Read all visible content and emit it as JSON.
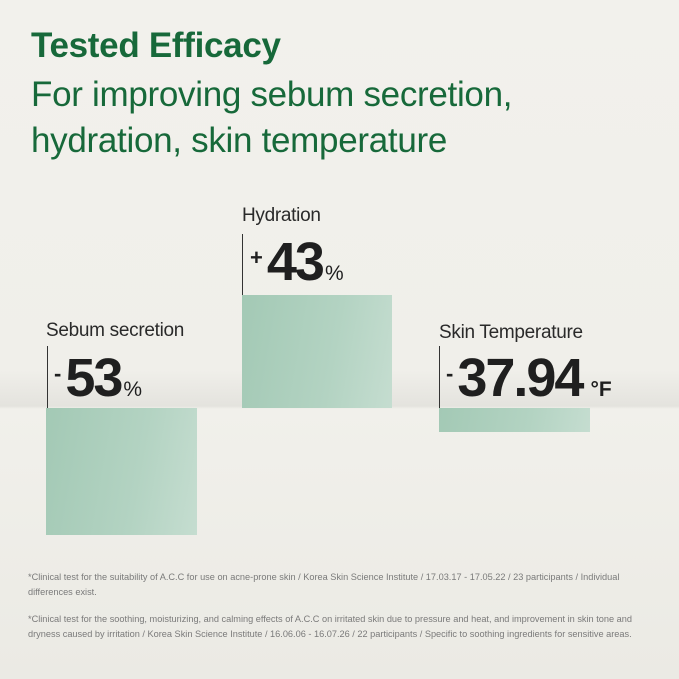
{
  "header": {
    "title": "Tested Efficacy",
    "subtitle": "For improving sebum secretion, hydration, skin temperature"
  },
  "colors": {
    "title": "#17693a",
    "bar": "#a3c9b5",
    "text": "#1f1f1f"
  },
  "chart_data": {
    "type": "bar",
    "categories": [
      "Sebum secretion",
      "Hydration",
      "Skin Temperature"
    ],
    "series": [
      {
        "values": [
          -53,
          43,
          -37.94
        ]
      }
    ],
    "labels": [
      {
        "category": "Sebum secretion",
        "sign": "-",
        "value": "53",
        "unit": "%"
      },
      {
        "category": "Hydration",
        "sign": "+",
        "value": "43",
        "unit": "%"
      },
      {
        "category": "Skin Temperature",
        "sign": "-",
        "value": "37.94",
        "unit": "°F"
      }
    ],
    "units": [
      "%",
      "%",
      "°F"
    ]
  },
  "footnotes": [
    "*Clinical test for the suitability of A.C.C for use on acne-prone skin / Korea Skin Science Institute / 17.03.17 - 17.05.22 / 23 participants / Individual differences exist.",
    "*Clinical test for the soothing, moisturizing, and calming effects of A.C.C on irritated skin due to pressure and heat, and improvement in skin tone and dryness caused by irritation / Korea Skin Science Institute / 16.06.06 - 16.07.26 / 22 participants / Specific to soothing ingredients for sensitive areas."
  ]
}
